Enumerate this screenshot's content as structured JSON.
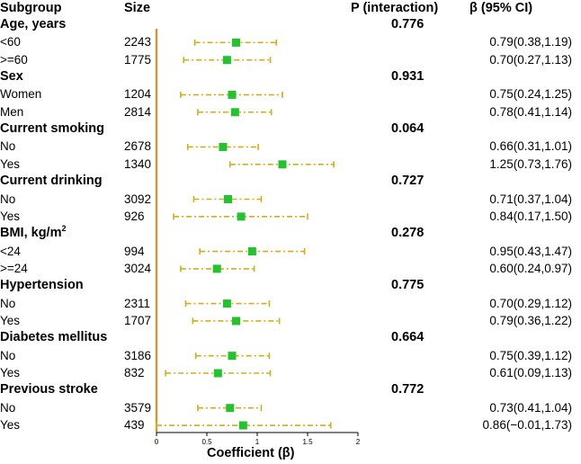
{
  "headers": {
    "subgroup": "Subgroup",
    "size": "Size",
    "p_interaction": "P (interaction)",
    "beta_ci": "β (95% CI)"
  },
  "groups": [
    {
      "label": "Age, years",
      "p": "0.776",
      "rows": [
        {
          "label": "<60",
          "size": "2243",
          "ci_text": "0.79(0.38,1.19)"
        },
        {
          "label": ">=60",
          "size": "1775",
          "ci_text": "0.70(0.27,1.13)"
        }
      ]
    },
    {
      "label": "Sex",
      "p": "0.931",
      "rows": [
        {
          "label": "Women",
          "size": "1204",
          "ci_text": "0.75(0.24,1.25)"
        },
        {
          "label": "Men",
          "size": "2814",
          "ci_text": "0.78(0.41,1.14)"
        }
      ]
    },
    {
      "label": "Current smoking",
      "p": "0.064",
      "rows": [
        {
          "label": "No",
          "size": "2678",
          "ci_text": "0.66(0.31,1.01)"
        },
        {
          "label": "Yes",
          "size": "1340",
          "ci_text": "1.25(0.73,1.76)"
        }
      ]
    },
    {
      "label": "Current drinking",
      "p": "0.727",
      "rows": [
        {
          "label": "No",
          "size": "3092",
          "ci_text": "0.71(0.37,1.04)"
        },
        {
          "label": "Yes",
          "size": "926",
          "ci_text": "0.84(0.17,1.50)"
        }
      ]
    },
    {
      "label": "BMI, kg/m",
      "sup": "2",
      "p": "0.278",
      "rows": [
        {
          "label": "<24",
          "size": "994",
          "ci_text": "0.95(0.43,1.47)"
        },
        {
          "label": ">=24",
          "size": "3024",
          "ci_text": "0.60(0.24,0.97)"
        }
      ]
    },
    {
      "label": "Hypertension",
      "p": "0.775",
      "rows": [
        {
          "label": "No",
          "size": "2311",
          "ci_text": "0.70(0.29,1.12)"
        },
        {
          "label": "Yes",
          "size": "1707",
          "ci_text": "0.79(0.36,1.22)"
        }
      ]
    },
    {
      "label": "Diabetes mellitus",
      "p": "0.664",
      "rows": [
        {
          "label": "No",
          "size": "3186",
          "ci_text": "0.75(0.39,1.12)"
        },
        {
          "label": "Yes",
          "size": "832",
          "ci_text": "0.61(0.09,1.13)"
        }
      ]
    },
    {
      "label": "Previous stroke",
      "p": "0.772",
      "rows": [
        {
          "label": "No",
          "size": "3579",
          "ci_text": "0.73(0.41,1.04)"
        },
        {
          "label": "Yes",
          "size": "439",
          "ci_text": "0.86(−0.01,1.73)"
        }
      ]
    }
  ],
  "colors": {
    "ref_line": "#f08a1f",
    "ci_line": "#d4ad1a",
    "point": "#22c32c",
    "axis": "#000000"
  },
  "chart_data": {
    "type": "forest",
    "xlabel": "Coefficient (β)",
    "xlim": [
      0,
      2
    ],
    "xticks": [
      0,
      0.5,
      1,
      1.5,
      2
    ],
    "xtick_labels": [
      "0",
      "0.5",
      "1",
      "1.5",
      "2"
    ],
    "reference_line": 0,
    "series": [
      {
        "name": "<60",
        "group": "Age, years",
        "beta": 0.79,
        "lo": 0.38,
        "hi": 1.19
      },
      {
        "name": ">=60",
        "group": "Age, years",
        "beta": 0.7,
        "lo": 0.27,
        "hi": 1.13
      },
      {
        "name": "Women",
        "group": "Sex",
        "beta": 0.75,
        "lo": 0.24,
        "hi": 1.25
      },
      {
        "name": "Men",
        "group": "Sex",
        "beta": 0.78,
        "lo": 0.41,
        "hi": 1.14
      },
      {
        "name": "No",
        "group": "Current smoking",
        "beta": 0.66,
        "lo": 0.31,
        "hi": 1.01
      },
      {
        "name": "Yes",
        "group": "Current smoking",
        "beta": 1.25,
        "lo": 0.73,
        "hi": 1.76
      },
      {
        "name": "No",
        "group": "Current drinking",
        "beta": 0.71,
        "lo": 0.37,
        "hi": 1.04
      },
      {
        "name": "Yes",
        "group": "Current drinking",
        "beta": 0.84,
        "lo": 0.17,
        "hi": 1.5
      },
      {
        "name": "<24",
        "group": "BMI, kg/m2",
        "beta": 0.95,
        "lo": 0.43,
        "hi": 1.47
      },
      {
        "name": ">=24",
        "group": "BMI, kg/m2",
        "beta": 0.6,
        "lo": 0.24,
        "hi": 0.97
      },
      {
        "name": "No",
        "group": "Hypertension",
        "beta": 0.7,
        "lo": 0.29,
        "hi": 1.12
      },
      {
        "name": "Yes",
        "group": "Hypertension",
        "beta": 0.79,
        "lo": 0.36,
        "hi": 1.22
      },
      {
        "name": "No",
        "group": "Diabetes mellitus",
        "beta": 0.75,
        "lo": 0.39,
        "hi": 1.12
      },
      {
        "name": "Yes",
        "group": "Diabetes mellitus",
        "beta": 0.61,
        "lo": 0.09,
        "hi": 1.13
      },
      {
        "name": "No",
        "group": "Previous stroke",
        "beta": 0.73,
        "lo": 0.41,
        "hi": 1.04
      },
      {
        "name": "Yes",
        "group": "Previous stroke",
        "beta": 0.86,
        "lo": -0.01,
        "hi": 1.73
      }
    ]
  }
}
